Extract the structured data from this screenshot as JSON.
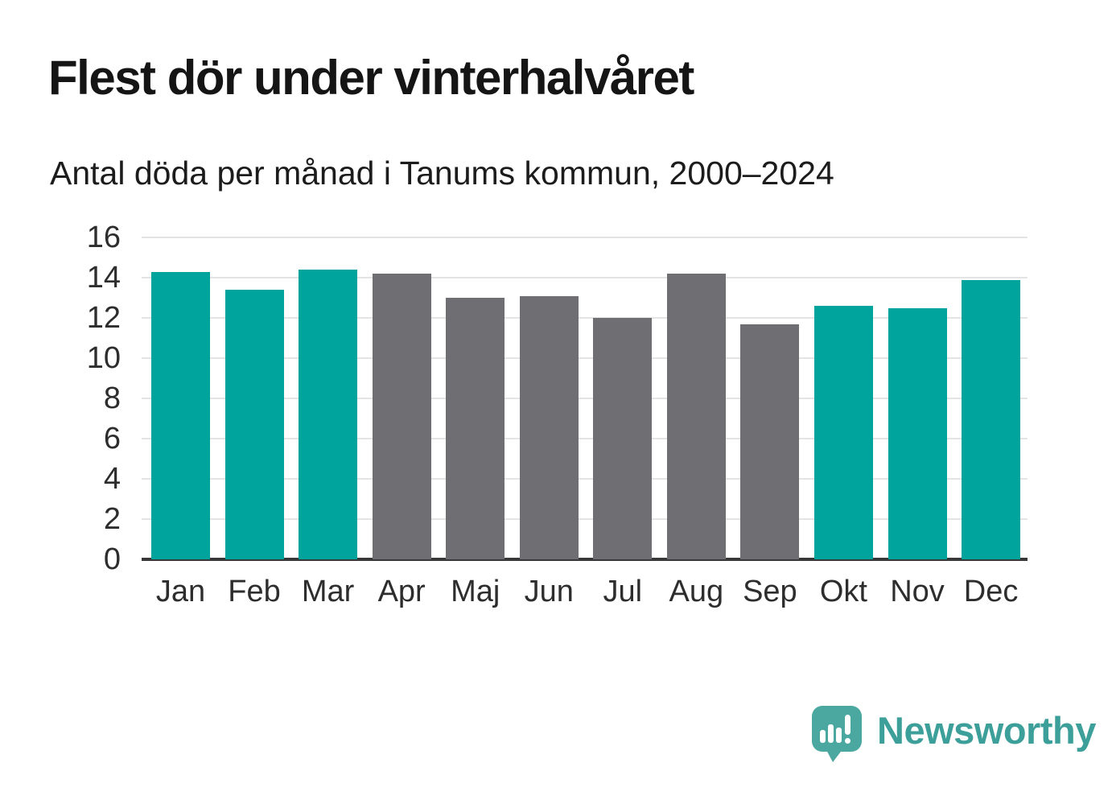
{
  "header": {
    "title": "Flest dör under vinterhalvåret",
    "subtitle": "Antal döda per månad i Tanums kommun, 2000–2024"
  },
  "chart_data": {
    "type": "bar",
    "title": "Flest dör under vinterhalvåret",
    "subtitle": "Antal döda per månad i Tanums kommun, 2000–2024",
    "categories": [
      "Jan",
      "Feb",
      "Mar",
      "Apr",
      "Maj",
      "Jun",
      "Jul",
      "Aug",
      "Sep",
      "Okt",
      "Nov",
      "Dec"
    ],
    "values": [
      14.3,
      13.4,
      14.4,
      14.2,
      13.0,
      13.1,
      12.0,
      14.2,
      11.7,
      12.6,
      12.5,
      13.9
    ],
    "bar_colors": [
      "teal",
      "teal",
      "teal",
      "gray",
      "gray",
      "gray",
      "gray",
      "gray",
      "gray",
      "teal",
      "teal",
      "teal"
    ],
    "palette": {
      "teal": "#00a49c",
      "gray": "#6e6e73"
    },
    "xlabel": "",
    "ylabel": "",
    "ylim": [
      0,
      16
    ],
    "yticks": [
      0,
      2,
      4,
      6,
      8,
      10,
      12,
      14,
      16
    ],
    "grid": "horizontal",
    "legend": "none",
    "gridline_color": "#e4e4e4",
    "axis_color": "#383838"
  },
  "footer": {
    "brand": "Newsworthy",
    "brand_color": "#3d9f99",
    "logo_color": "#4aa8a0"
  }
}
